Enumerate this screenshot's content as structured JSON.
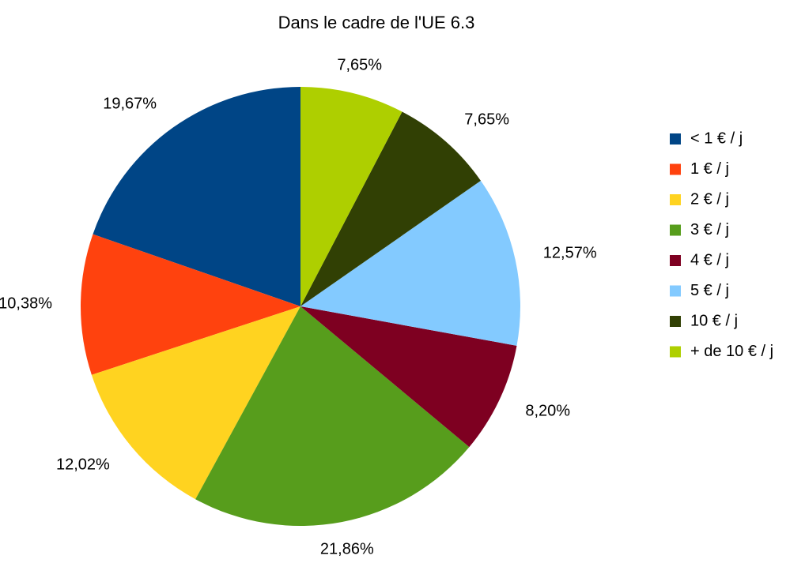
{
  "chart_data": {
    "type": "pie",
    "title": "Dans le cadre de l'UE 6.3",
    "categories": [
      "< 1 € / j",
      "1 € / j",
      "2 € / j",
      "3 € / j",
      "4 € / j",
      "5 € / j",
      "10 € / j",
      "+ de 10 € / j"
    ],
    "values": [
      19.67,
      10.38,
      12.02,
      21.86,
      8.2,
      12.57,
      7.65,
      7.65
    ],
    "value_labels": [
      "19,67%",
      "10,38%",
      "12,02%",
      "21,86%",
      "8,20%",
      "12,57%",
      "7,65%",
      "7,65%"
    ],
    "colors": [
      "#004586",
      "#ff420e",
      "#ffd320",
      "#579d1c",
      "#7e0021",
      "#83caff",
      "#314004",
      "#aecf00"
    ],
    "legend": "right"
  }
}
